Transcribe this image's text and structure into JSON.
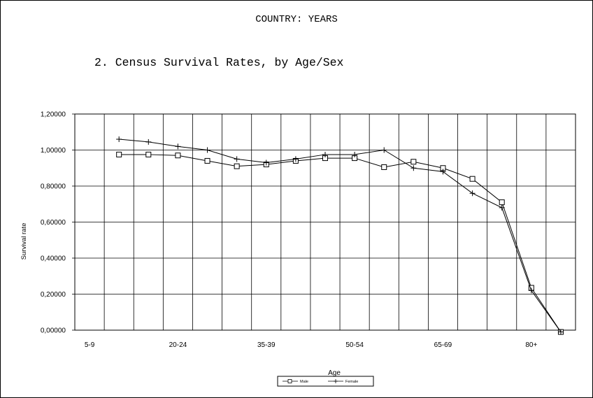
{
  "header": {
    "title": "COUNTRY:  YEARS",
    "chart_title": "2. Census Survival Rates, by Age/Sex"
  },
  "chart_data": {
    "type": "line",
    "ylabel": "Survival rate",
    "xlabel": "Age",
    "ylim": [
      0,
      1.2
    ],
    "y_ticks": [
      "0,00000",
      "0,20000",
      "0,40000",
      "0,60000",
      "0,80000",
      "1,00000",
      "1,20000"
    ],
    "x_tick_labels": [
      "5-9",
      "20-24",
      "35-39",
      "50-54",
      "65-69",
      "80+"
    ],
    "grid": true,
    "legend_position": "bottom-center",
    "series": [
      {
        "name": "Male",
        "marker": "square",
        "values": [
          0.975,
          0.975,
          0.97,
          0.94,
          0.91,
          0.92,
          0.94,
          0.955,
          0.955,
          0.905,
          0.935,
          0.9,
          0.84,
          0.71,
          0.235,
          -0.01
        ]
      },
      {
        "name": "Female",
        "marker": "plus",
        "values": [
          1.06,
          1.045,
          1.02,
          1.0,
          0.95,
          0.93,
          0.95,
          0.975,
          0.975,
          1.0,
          0.9,
          0.88,
          0.76,
          0.68,
          0.22,
          -0.01
        ]
      }
    ],
    "colors": {
      "line": "#000000",
      "grid": "#000000"
    }
  }
}
